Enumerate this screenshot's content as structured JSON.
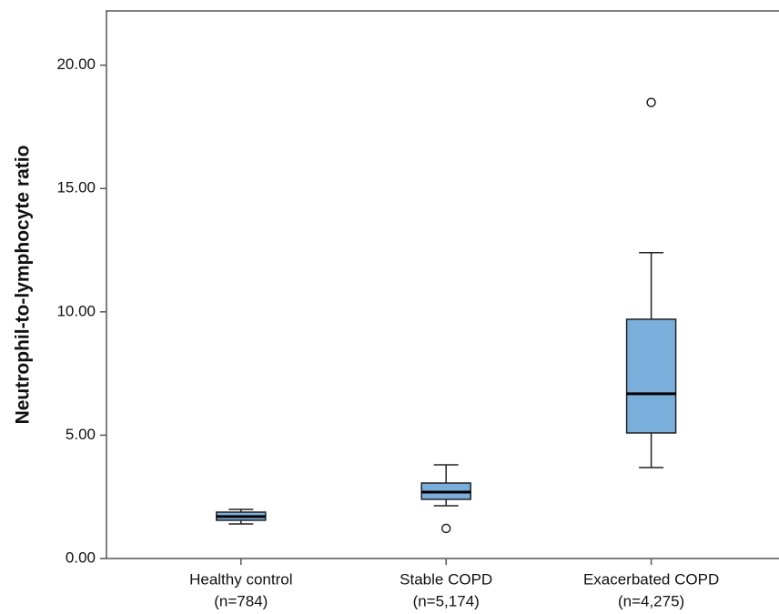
{
  "chart_data": {
    "type": "box",
    "y_label": "Neutrophil-to-lymphocyte ratio",
    "categories": [
      "Healthy control",
      "Stable COPD",
      "Exacerbated COPD"
    ],
    "category_counts": [
      "(n=784)",
      "(n=5,174)",
      "(n=4,275)"
    ],
    "boxes": [
      {
        "whisker_low": 1.4,
        "q1": 1.55,
        "median": 1.7,
        "q3": 1.88,
        "whisker_high": 1.99,
        "outliers": []
      },
      {
        "whisker_low": 2.14,
        "q1": 2.4,
        "median": 2.69,
        "q3": 3.06,
        "whisker_high": 3.8,
        "outliers": [
          1.22
        ]
      },
      {
        "whisker_low": 3.69,
        "q1": 5.09,
        "median": 6.68,
        "q3": 9.7,
        "whisker_high": 12.4,
        "outliers": [
          18.49
        ]
      }
    ],
    "color": "#7aaedb",
    "ylim": [
      0,
      22.2
    ],
    "yticks": [
      {
        "value": 0,
        "label": "0.00"
      },
      {
        "value": 5,
        "label": "5.00"
      },
      {
        "value": 10,
        "label": "10.00"
      },
      {
        "value": 15,
        "label": "15.00"
      },
      {
        "value": 20,
        "label": "20.00"
      }
    ]
  }
}
